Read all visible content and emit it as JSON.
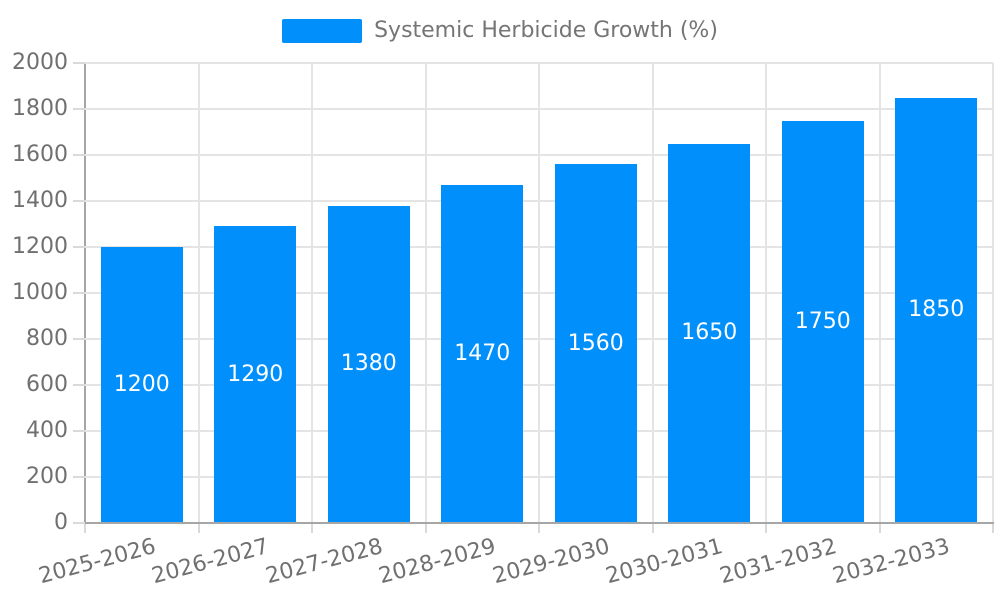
{
  "legend": {
    "label": "Systemic Herbicide Growth (%)"
  },
  "chart_data": {
    "type": "bar",
    "title": "",
    "xlabel": "",
    "ylabel": "",
    "categories": [
      "2025-2026",
      "2026-2027",
      "2027-2028",
      "2028-2029",
      "2029-2030",
      "2030-2031",
      "2031-2032",
      "2032-2033"
    ],
    "values": [
      1200,
      1290,
      1380,
      1470,
      1560,
      1650,
      1750,
      1850
    ],
    "series_name": "Systemic Herbicide Growth (%)",
    "ylim": [
      0,
      2000
    ],
    "ytick_step": 200,
    "grid": true,
    "legend_position": "top",
    "value_labels": "inside-center",
    "colors": {
      "bar": "#008FFB",
      "grid": "#e4e4e4",
      "axis": "#a6a6a6",
      "tick": "#d9d9d9",
      "label": "#707070",
      "value_label": "#ffffff",
      "background": "#ffffff"
    }
  }
}
